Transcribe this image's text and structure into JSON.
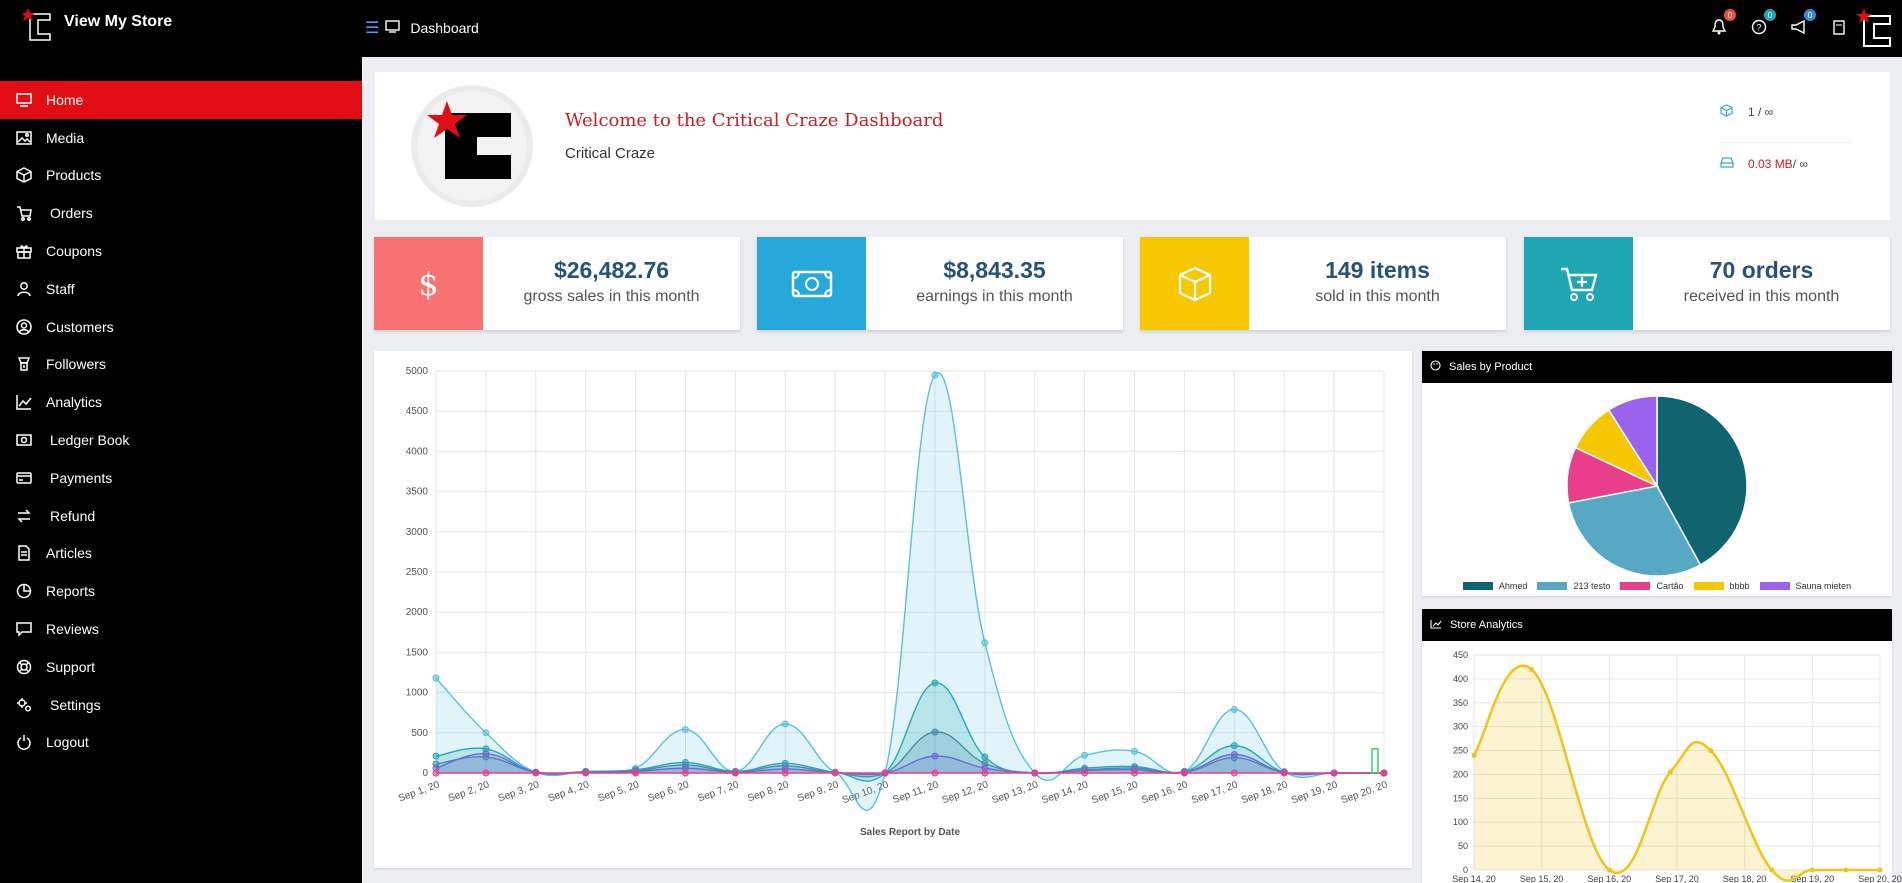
{
  "header": {
    "brand": "View My Store",
    "breadcrumb": "Dashboard",
    "badges": {
      "notifications": "0",
      "help": "0",
      "announcements": "0"
    }
  },
  "sidebar": {
    "items": [
      {
        "label": "Home",
        "icon": "monitor-icon"
      },
      {
        "label": "Media",
        "icon": "image-icon"
      },
      {
        "label": "Products",
        "icon": "box-icon"
      },
      {
        "label": "Orders",
        "icon": "cart-icon"
      },
      {
        "label": "Coupons",
        "icon": "gift-icon"
      },
      {
        "label": "Staff",
        "icon": "user-icon"
      },
      {
        "label": "Customers",
        "icon": "user-circle-icon"
      },
      {
        "label": "Followers",
        "icon": "followers-icon"
      },
      {
        "label": "Analytics",
        "icon": "chart-line-icon"
      },
      {
        "label": "Ledger Book",
        "icon": "money-icon"
      },
      {
        "label": "Payments",
        "icon": "credit-card-icon"
      },
      {
        "label": "Refund",
        "icon": "refund-icon"
      },
      {
        "label": "Articles",
        "icon": "document-icon"
      },
      {
        "label": "Reports",
        "icon": "reports-icon"
      },
      {
        "label": "Reviews",
        "icon": "comment-icon"
      },
      {
        "label": "Support",
        "icon": "lifebuoy-icon"
      },
      {
        "label": "Settings",
        "icon": "gears-icon"
      },
      {
        "label": "Logout",
        "icon": "power-icon"
      }
    ]
  },
  "welcome": {
    "title": "Welcome to the Critical Craze Dashboard",
    "store_name": "Critical Craze",
    "quota_products": "1 / ∞",
    "quota_space_used": "0.03 MB",
    "quota_space_limit": " / ∞"
  },
  "stats": [
    {
      "value": "$26,482.76",
      "label": "gross sales in this month",
      "color": "#f87272"
    },
    {
      "value": "$8,843.35",
      "label": "earnings in this month",
      "color": "#26a9da"
    },
    {
      "value": "149 items",
      "label": "sold in this month",
      "color": "#f7c800"
    },
    {
      "value": "70 orders",
      "label": "received in this month",
      "color": "#1ea7b3"
    }
  ],
  "panels": {
    "sales_by_product": "Sales by Product",
    "store_analytics": "Store Analytics"
  },
  "chart_data": [
    {
      "type": "area",
      "xlabel": "Sales Report by Date",
      "ylim": [
        0,
        5000
      ],
      "yticks": [
        0,
        500,
        1000,
        1500,
        2000,
        2500,
        3000,
        3500,
        4000,
        4500,
        5000
      ],
      "categories": [
        "Sep 1, 20",
        "Sep 2, 20",
        "Sep 3, 20",
        "Sep 4, 20",
        "Sep 5, 20",
        "Sep 6, 20",
        "Sep 7, 20",
        "Sep 8, 20",
        "Sep 9, 20",
        "Sep 10, 20",
        "Sep 11, 20",
        "Sep 12, 20",
        "Sep 13, 20",
        "Sep 14, 20",
        "Sep 15, 20",
        "Sep 16, 20",
        "Sep 17, 20",
        "Sep 18, 20",
        "Sep 19, 20",
        "Sep 20, 20"
      ],
      "series": [
        {
          "color": "#5bc0de",
          "values": [
            1180,
            500,
            10,
            20,
            60,
            540,
            20,
            610,
            10,
            0,
            4950,
            1620,
            0,
            220,
            270,
            20,
            790,
            20,
            0,
            0
          ]
        },
        {
          "color": "#26a9b8",
          "values": [
            210,
            300,
            10,
            20,
            40,
            130,
            20,
            120,
            10,
            0,
            1120,
            200,
            0,
            60,
            80,
            20,
            340,
            10,
            0,
            0
          ]
        },
        {
          "color": "#4a8fa8",
          "values": [
            110,
            200,
            10,
            10,
            30,
            100,
            15,
            90,
            5,
            0,
            510,
            120,
            0,
            40,
            60,
            10,
            190,
            5,
            0,
            0
          ]
        },
        {
          "color": "#6d6ad8",
          "values": [
            60,
            240,
            5,
            10,
            20,
            60,
            10,
            50,
            5,
            0,
            210,
            60,
            0,
            30,
            40,
            10,
            230,
            5,
            0,
            0
          ]
        },
        {
          "color": "#e83e8c",
          "values": [
            0,
            0,
            0,
            0,
            0,
            0,
            0,
            0,
            0,
            0,
            0,
            0,
            0,
            0,
            0,
            0,
            0,
            0,
            0,
            0
          ]
        }
      ],
      "bar": {
        "category": "Sep 20, 20",
        "value": 300,
        "color": "#3ccf6c"
      }
    },
    {
      "type": "pie",
      "categories": [
        "Ahmed",
        "213 testo",
        "Cartão",
        "bbbb",
        "Sauna mieten"
      ],
      "values": [
        42,
        30,
        10,
        9,
        9
      ],
      "colors": [
        "#0f6470",
        "#57a8c2",
        "#e83e8c",
        "#f6c700",
        "#9b62ef"
      ]
    },
    {
      "type": "area",
      "ylim": [
        0,
        450
      ],
      "yticks": [
        0,
        50,
        100,
        150,
        200,
        250,
        300,
        350,
        400,
        450
      ],
      "categories": [
        "Sep 14, 20",
        "Sep 15, 20",
        "Sep 16, 20",
        "Sep 17, 20",
        "Sep 18, 20",
        "Sep 19, 20",
        "Sep 20, 20"
      ],
      "x": [
        0,
        1,
        2,
        3,
        4,
        5,
        6
      ],
      "series": [
        {
          "color": "#f2c319",
          "x": [
            0,
            0.85,
            2,
            2.9,
            3.5,
            4.4,
            5,
            5.5,
            6
          ],
          "values": [
            240,
            420,
            0,
            205,
            250,
            0,
            0,
            0,
            0
          ]
        }
      ]
    }
  ]
}
